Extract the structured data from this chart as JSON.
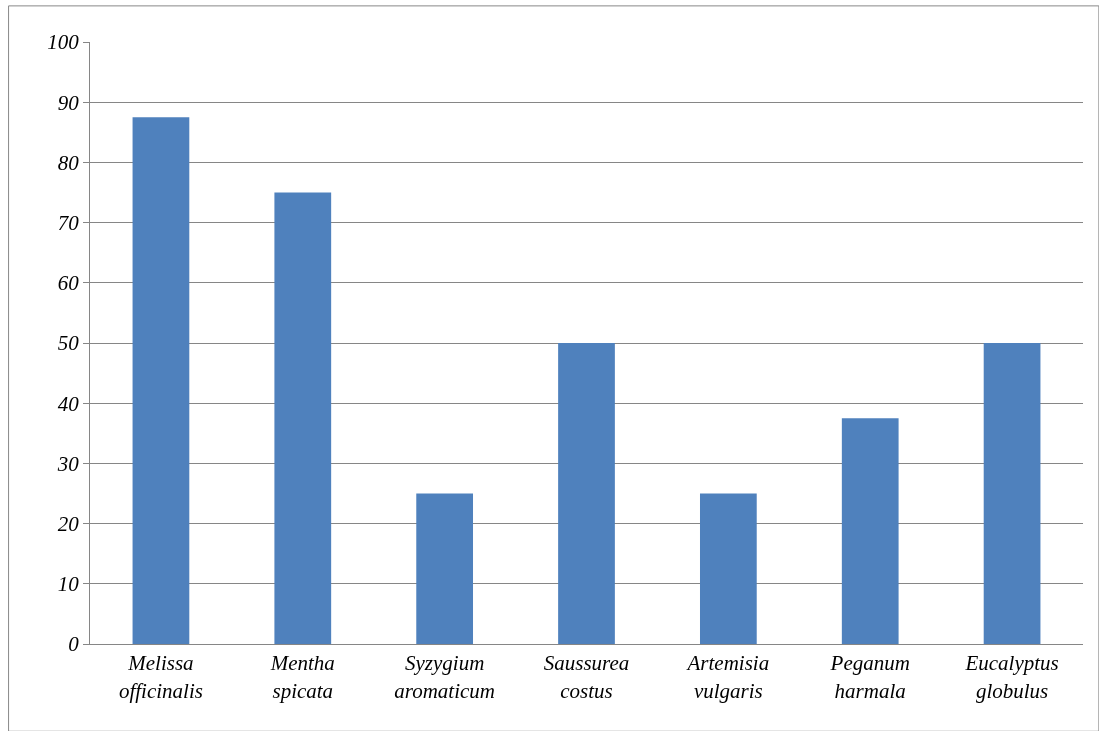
{
  "chart_data": {
    "type": "bar",
    "categories": [
      "Melissa officinalis",
      "Mentha spicata",
      "Syzygium aromaticum",
      "Saussurea costus",
      "Artemisia vulgaris",
      "Peganum harmala",
      "Eucalyptus globulus"
    ],
    "values": [
      87.5,
      75,
      25,
      50,
      25,
      37.5,
      50
    ],
    "color": "#4f81bd",
    "ylim": [
      0,
      100
    ],
    "yticks": [
      0,
      10,
      20,
      30,
      40,
      50,
      60,
      70,
      80,
      90,
      100
    ],
    "grid": "y"
  }
}
